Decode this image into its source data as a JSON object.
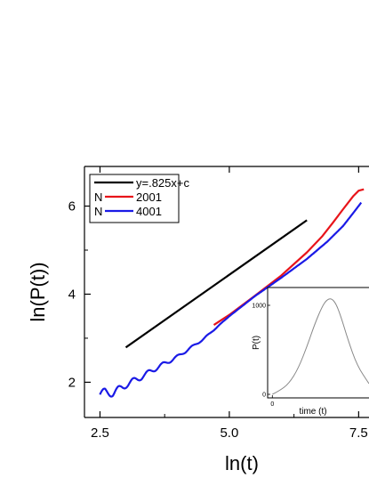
{
  "chart_data": {
    "type": "line",
    "xlabel": "ln(t)",
    "ylabel": "ln(P(t))",
    "xlim": [
      2.2,
      7.7
    ],
    "ylim": [
      1.2,
      6.9
    ],
    "xticks": [
      {
        "value": 2.5,
        "label": "2.5"
      },
      {
        "value": 5.0,
        "label": "5.0"
      },
      {
        "value": 7.5,
        "label": "7.5"
      }
    ],
    "yticks": [
      {
        "value": 2,
        "label": "2"
      },
      {
        "value": 4,
        "label": "4"
      },
      {
        "value": 6,
        "label": "6"
      }
    ],
    "legend": {
      "placement": "top-left",
      "entries": [
        {
          "label": "y=.825x+c",
          "prefix": "",
          "color": "#000000"
        },
        {
          "label": "2001",
          "prefix": "N",
          "color": "#e8141a"
        },
        {
          "label": "4001",
          "prefix": "N",
          "color": "#1a1ae6"
        }
      ]
    },
    "series": [
      {
        "name": "y=.825x+c",
        "color": "#000000",
        "x": [
          3.0,
          6.5
        ],
        "y": [
          2.79,
          5.68
        ]
      },
      {
        "name": "2001",
        "color": "#e8141a",
        "x": [
          4.7,
          5.0,
          5.5,
          6.0,
          6.5,
          6.8,
          7.0,
          7.2,
          7.4,
          7.5,
          7.6
        ],
        "y": [
          3.3,
          3.53,
          3.97,
          4.42,
          4.95,
          5.32,
          5.62,
          5.93,
          6.23,
          6.35,
          6.38
        ]
      },
      {
        "name": "4001",
        "color": "#1a1ae6",
        "x": [
          2.5,
          2.6,
          2.75,
          3.0,
          3.3,
          3.6,
          4.0,
          4.5,
          5.0,
          5.5,
          6.0,
          6.5,
          6.9,
          7.2,
          7.4,
          7.55
        ],
        "y": [
          1.72,
          1.78,
          1.75,
          1.94,
          2.12,
          2.33,
          2.58,
          2.98,
          3.5,
          3.96,
          4.37,
          4.8,
          5.2,
          5.55,
          5.85,
          6.08
        ]
      }
    ],
    "inset": {
      "type": "line",
      "xlabel": "time (t)",
      "ylabel": "P(t)",
      "xtick_labels": [
        "0"
      ],
      "ytick_labels": [
        "0",
        "1000"
      ],
      "color": "#888888",
      "x": [
        0.0,
        0.3,
        0.7,
        1.1,
        1.5,
        1.8,
        2.1,
        2.3,
        2.5,
        2.7,
        2.9,
        3.2,
        3.6,
        4.1
      ],
      "y": [
        0,
        40,
        120,
        290,
        560,
        790,
        980,
        1060,
        1080,
        1020,
        880,
        620,
        320,
        120
      ],
      "xlim": [
        -0.2,
        4.1
      ],
      "ylim": [
        -40,
        1200
      ]
    }
  }
}
